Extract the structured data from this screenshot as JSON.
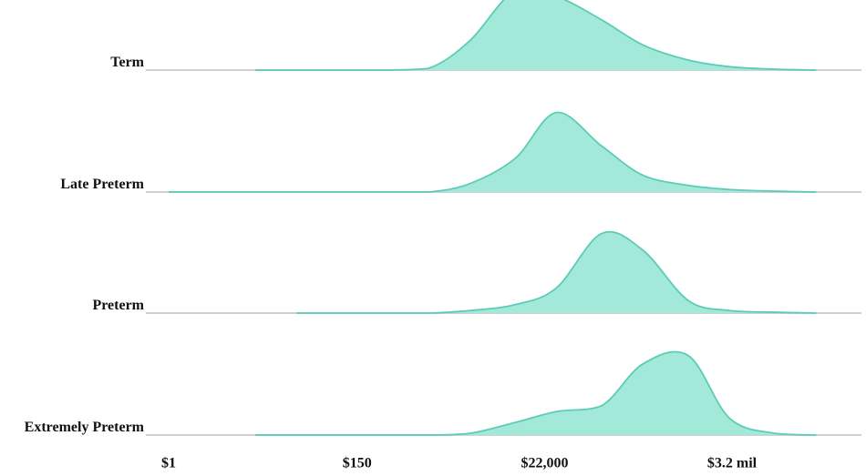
{
  "chart_data": {
    "type": "ridgeline",
    "x_scale": "log",
    "x": [
      1,
      3,
      10,
      30,
      100,
      300,
      1000,
      3000,
      10000,
      30000,
      100000,
      300000,
      1000000,
      3000000,
      10000000,
      30000000
    ],
    "series": [
      {
        "name": "Term",
        "color": "#5cccb6",
        "values": [
          null,
          null,
          0,
          0,
          0,
          0,
          0.02,
          0.35,
          0.95,
          0.88,
          0.6,
          0.3,
          0.12,
          0.04,
          0.01,
          0
        ]
      },
      {
        "name": "Late Preterm",
        "color": "#5cccb6",
        "values": [
          0,
          0,
          0,
          0,
          0,
          0,
          0,
          0.1,
          0.4,
          0.95,
          0.55,
          0.2,
          0.08,
          0.03,
          0.01,
          0
        ]
      },
      {
        "name": "Preterm",
        "color": "#5cccb6",
        "values": [
          null,
          null,
          null,
          0,
          0,
          0,
          0,
          0.03,
          0.1,
          0.3,
          0.95,
          0.75,
          0.15,
          0.03,
          0.01,
          0
        ]
      },
      {
        "name": "Extremely Preterm",
        "color": "#5cccb6",
        "values": [
          null,
          null,
          0,
          0,
          0,
          0,
          0,
          0.02,
          0.15,
          0.28,
          0.35,
          0.85,
          0.95,
          0.2,
          0.02,
          0
        ]
      }
    ],
    "xlim": [
      1,
      100000000
    ],
    "ylim": [
      0,
      1
    ],
    "xticks": [
      {
        "value": 1,
        "label": "$1"
      },
      {
        "value": 150,
        "label": "$150"
      },
      {
        "value": 22000,
        "label": "$22,000"
      },
      {
        "value": 3200000,
        "label": "$3.2 mil"
      }
    ]
  }
}
